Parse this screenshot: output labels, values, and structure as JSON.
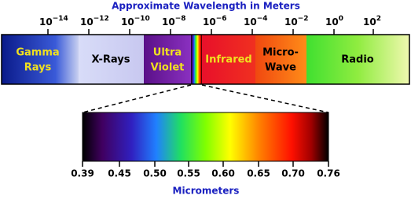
{
  "title": "Approximate Wavelength in Meters",
  "wavelength_ticks": [
    {
      "base": "10",
      "exp": "−14"
    },
    {
      "base": "10",
      "exp": "−12"
    },
    {
      "base": "10",
      "exp": "−10"
    },
    {
      "base": "10",
      "exp": "−8"
    },
    {
      "base": "10",
      "exp": "−6"
    },
    {
      "base": "10",
      "exp": "−4"
    },
    {
      "base": "10",
      "exp": "−2"
    },
    {
      "base": "10",
      "exp": "0"
    },
    {
      "base": "10",
      "exp": "2"
    }
  ],
  "bands": [
    {
      "line1": "Gamma",
      "line2": "Rays"
    },
    {
      "line1": "X-Rays"
    },
    {
      "line1": "Ultra",
      "line2": "Violet"
    },
    {
      "line1": "Infrared"
    },
    {
      "line1": "Micro-",
      "line2": "Wave"
    },
    {
      "line1": "Radio"
    }
  ],
  "visible_ticks": [
    "0.39",
    "0.45",
    "0.50",
    "0.55",
    "0.60",
    "0.65",
    "0.70",
    "0.76"
  ],
  "visible_axis_label": "Micrometers"
}
